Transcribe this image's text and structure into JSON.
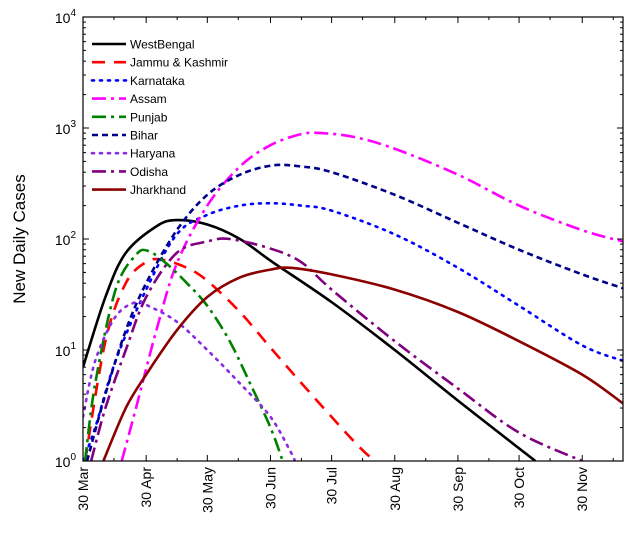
{
  "chart_data": {
    "type": "line",
    "title": "",
    "xlabel": "",
    "ylabel": "New Daily Cases",
    "yscale": "log",
    "ylim": [
      1,
      10000
    ],
    "xlim": [
      "2020-03-30",
      "2020-12-20"
    ],
    "grid": false,
    "legend_position": "top-left",
    "x_ticks": [
      {
        "date": "2020-03-30",
        "label": "30 Mar"
      },
      {
        "date": "2020-04-30",
        "label": "30 Apr"
      },
      {
        "date": "2020-05-30",
        "label": "30 May"
      },
      {
        "date": "2020-06-30",
        "label": "30 Jun"
      },
      {
        "date": "2020-07-30",
        "label": "30 Jul"
      },
      {
        "date": "2020-08-30",
        "label": "30 Aug"
      },
      {
        "date": "2020-09-30",
        "label": "30 Sep"
      },
      {
        "date": "2020-10-30",
        "label": "30 Oct"
      },
      {
        "date": "2020-11-30",
        "label": "30 Nov"
      }
    ],
    "y_ticks": [
      {
        "value": 1,
        "base": "10",
        "exp": "0"
      },
      {
        "value": 10,
        "base": "10",
        "exp": "1"
      },
      {
        "value": 100,
        "base": "10",
        "exp": "2"
      },
      {
        "value": 1000,
        "base": "10",
        "exp": "3"
      },
      {
        "value": 10000,
        "base": "10",
        "exp": "4"
      }
    ],
    "series": [
      {
        "name": "WestBengal",
        "color": "#000000",
        "dash": "solid",
        "points": [
          [
            "2020-03-30",
            7
          ],
          [
            "2020-04-10",
            30
          ],
          [
            "2020-04-20",
            75
          ],
          [
            "2020-05-05",
            130
          ],
          [
            "2020-05-15",
            148
          ],
          [
            "2020-05-30",
            135
          ],
          [
            "2020-06-15",
            100
          ],
          [
            "2020-07-01",
            62
          ],
          [
            "2020-07-30",
            27
          ],
          [
            "2020-08-30",
            10
          ],
          [
            "2020-09-30",
            3.5
          ],
          [
            "2020-10-30",
            1.3
          ],
          [
            "2020-11-07",
            1.0
          ]
        ]
      },
      {
        "name": "Jammu & Kashmir",
        "color": "#ff0000",
        "dash": "longdash",
        "points": [
          [
            "2020-03-31",
            1.0
          ],
          [
            "2020-04-10",
            12
          ],
          [
            "2020-04-20",
            40
          ],
          [
            "2020-04-30",
            62
          ],
          [
            "2020-05-08",
            65
          ],
          [
            "2020-05-20",
            55
          ],
          [
            "2020-05-30",
            42
          ],
          [
            "2020-06-15",
            22
          ],
          [
            "2020-07-01",
            10
          ],
          [
            "2020-07-20",
            4
          ],
          [
            "2020-08-10",
            1.5
          ],
          [
            "2020-08-20",
            1.0
          ]
        ]
      },
      {
        "name": "Karnataka",
        "color": "#0000ff",
        "dash": "dot",
        "points": [
          [
            "2020-03-30",
            1.0
          ],
          [
            "2020-04-05",
            2
          ],
          [
            "2020-04-15",
            8
          ],
          [
            "2020-04-30",
            35
          ],
          [
            "2020-05-15",
            110
          ],
          [
            "2020-05-30",
            165
          ],
          [
            "2020-06-15",
            200
          ],
          [
            "2020-06-30",
            210
          ],
          [
            "2020-07-15",
            200
          ],
          [
            "2020-07-30",
            180
          ],
          [
            "2020-08-30",
            110
          ],
          [
            "2020-09-30",
            55
          ],
          [
            "2020-10-30",
            25
          ],
          [
            "2020-11-30",
            11
          ],
          [
            "2020-12-20",
            8
          ]
        ]
      },
      {
        "name": "Assam",
        "color": "#ff00ff",
        "dash": "dashdot",
        "points": [
          [
            "2020-04-18",
            1.0
          ],
          [
            "2020-04-25",
            3
          ],
          [
            "2020-05-05",
            15
          ],
          [
            "2020-05-15",
            60
          ],
          [
            "2020-05-30",
            200
          ],
          [
            "2020-06-15",
            450
          ],
          [
            "2020-06-30",
            700
          ],
          [
            "2020-07-15",
            880
          ],
          [
            "2020-07-25",
            900
          ],
          [
            "2020-08-10",
            830
          ],
          [
            "2020-08-30",
            650
          ],
          [
            "2020-09-30",
            380
          ],
          [
            "2020-10-30",
            200
          ],
          [
            "2020-11-30",
            120
          ],
          [
            "2020-12-20",
            95
          ]
        ]
      },
      {
        "name": "Punjab",
        "color": "#008000",
        "dash": "dashdot",
        "points": [
          [
            "2020-03-31",
            1.0
          ],
          [
            "2020-04-05",
            5
          ],
          [
            "2020-04-15",
            35
          ],
          [
            "2020-04-25",
            72
          ],
          [
            "2020-05-01",
            78
          ],
          [
            "2020-05-10",
            60
          ],
          [
            "2020-05-20",
            40
          ],
          [
            "2020-05-30",
            25
          ],
          [
            "2020-06-10",
            12
          ],
          [
            "2020-06-20",
            5
          ],
          [
            "2020-06-30",
            2
          ],
          [
            "2020-07-06",
            1.0
          ]
        ]
      },
      {
        "name": "Bihar",
        "color": "#00008b",
        "dash": "dash",
        "points": [
          [
            "2020-04-01",
            1.0
          ],
          [
            "2020-04-10",
            4
          ],
          [
            "2020-04-20",
            15
          ],
          [
            "2020-04-30",
            40
          ],
          [
            "2020-05-15",
            120
          ],
          [
            "2020-05-30",
            250
          ],
          [
            "2020-06-15",
            380
          ],
          [
            "2020-07-01",
            460
          ],
          [
            "2020-07-15",
            450
          ],
          [
            "2020-07-30",
            400
          ],
          [
            "2020-08-30",
            250
          ],
          [
            "2020-09-30",
            140
          ],
          [
            "2020-10-30",
            80
          ],
          [
            "2020-11-30",
            48
          ],
          [
            "2020-12-20",
            36
          ]
        ]
      },
      {
        "name": "Haryana",
        "color": "#8a2be2",
        "dash": "dot",
        "points": [
          [
            "2020-03-30",
            2.5
          ],
          [
            "2020-04-05",
            8
          ],
          [
            "2020-04-15",
            20
          ],
          [
            "2020-04-25",
            27
          ],
          [
            "2020-05-01",
            25
          ],
          [
            "2020-05-15",
            18
          ],
          [
            "2020-05-30",
            10
          ],
          [
            "2020-06-15",
            5
          ],
          [
            "2020-06-30",
            2.5
          ],
          [
            "2020-07-10",
            1.2
          ],
          [
            "2020-07-12",
            1.0
          ]
        ]
      },
      {
        "name": "Odisha",
        "color": "#800080",
        "dash": "dashdot",
        "points": [
          [
            "2020-04-03",
            1.0
          ],
          [
            "2020-04-10",
            3
          ],
          [
            "2020-04-20",
            10
          ],
          [
            "2020-04-30",
            30
          ],
          [
            "2020-05-15",
            75
          ],
          [
            "2020-05-30",
            95
          ],
          [
            "2020-06-10",
            100
          ],
          [
            "2020-06-30",
            82
          ],
          [
            "2020-07-15",
            62
          ],
          [
            "2020-07-30",
            35
          ],
          [
            "2020-08-30",
            12
          ],
          [
            "2020-09-30",
            4.5
          ],
          [
            "2020-10-30",
            1.8
          ],
          [
            "2020-11-30",
            1.0
          ]
        ]
      },
      {
        "name": "Jharkhand",
        "color": "#8b0000",
        "dash": "solid",
        "points": [
          [
            "2020-04-09",
            1.0
          ],
          [
            "2020-04-20",
            3
          ],
          [
            "2020-04-30",
            6
          ],
          [
            "2020-05-15",
            15
          ],
          [
            "2020-05-30",
            30
          ],
          [
            "2020-06-15",
            45
          ],
          [
            "2020-06-30",
            53
          ],
          [
            "2020-07-10",
            55
          ],
          [
            "2020-07-30",
            48
          ],
          [
            "2020-08-30",
            35
          ],
          [
            "2020-09-30",
            22
          ],
          [
            "2020-10-30",
            12
          ],
          [
            "2020-11-30",
            6
          ],
          [
            "2020-12-20",
            3.3
          ]
        ]
      }
    ]
  }
}
